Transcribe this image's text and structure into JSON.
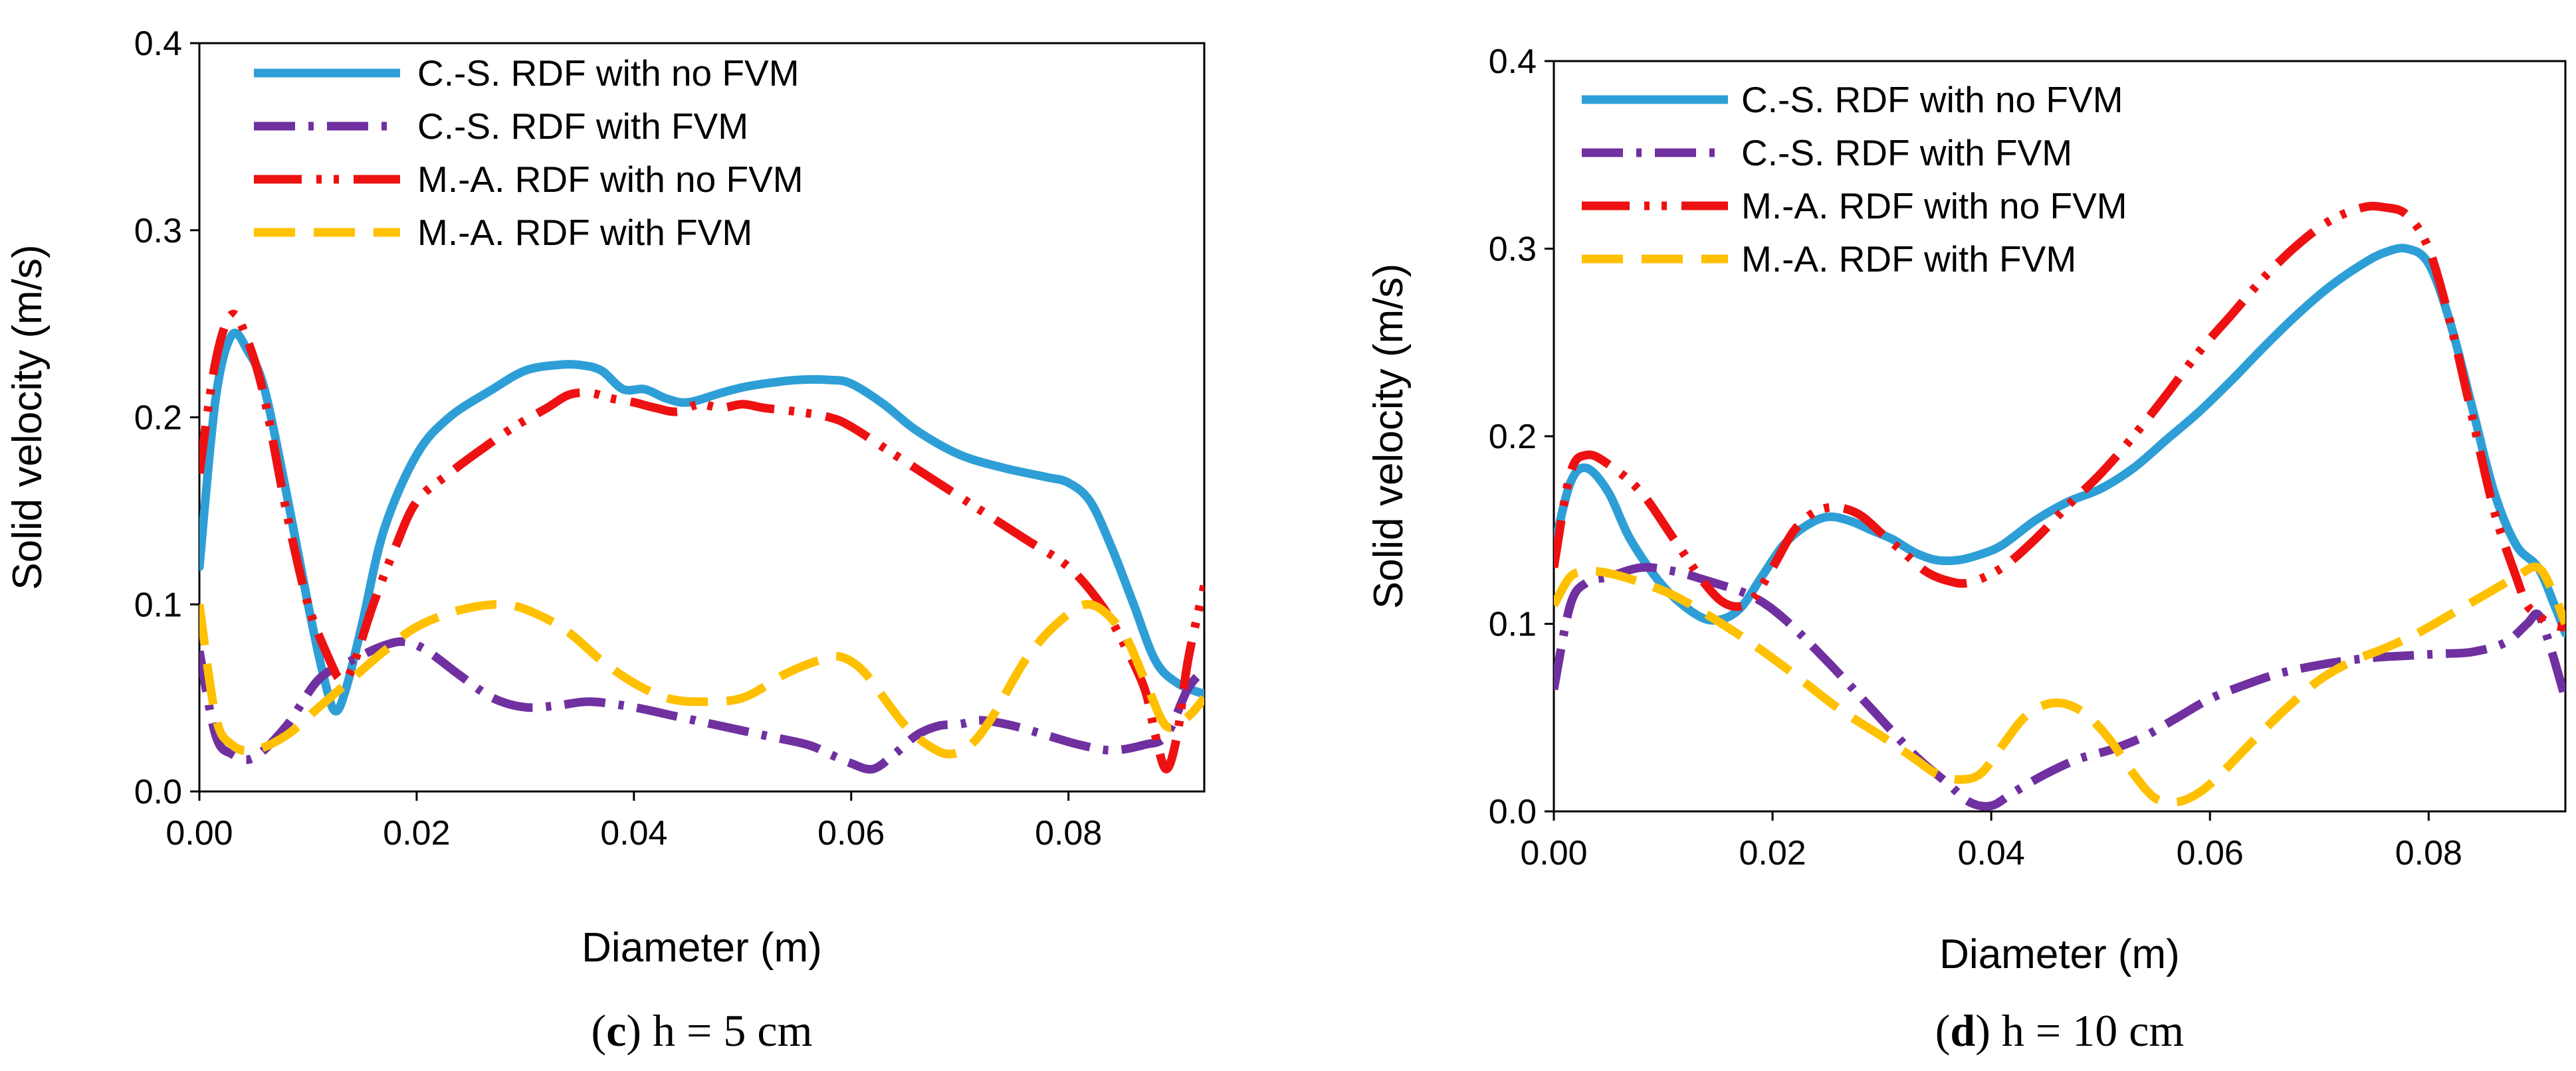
{
  "colors": {
    "cs_no_fvm": "#2E9FD6",
    "cs_fvm": "#7030A0",
    "ma_no_fvm": "#EE1111",
    "ma_fvm": "#FFC000"
  },
  "chart_data": [
    {
      "type": "line",
      "caption": {
        "letter": "c",
        "open": "(",
        "close": ")",
        "text": " h = 5 cm"
      },
      "xlabel": "Diameter (m)",
      "ylabel": "Solid velocity (m/s)",
      "xlim": [
        0,
        0.0925
      ],
      "ylim": [
        0,
        0.4
      ],
      "xticks": [
        0,
        0.02,
        0.04,
        0.06,
        0.08
      ],
      "xtick_labels": [
        "0.00",
        "0.02",
        "0.04",
        "0.06",
        "0.08"
      ],
      "yticks": [
        0,
        0.1,
        0.2,
        0.3,
        0.4
      ],
      "ytick_labels": [
        "0.0",
        "0.1",
        "0.2",
        "0.3",
        "0.4"
      ],
      "grid": false,
      "legend_position": "top-left",
      "series": [
        {
          "name": "C.-S. RDF with no FVM",
          "style": "solid",
          "color_key": "cs_no_fvm",
          "x": [
            0,
            0.0015,
            0.003,
            0.0045,
            0.006,
            0.008,
            0.01,
            0.0115,
            0.0125,
            0.0135,
            0.015,
            0.017,
            0.02,
            0.023,
            0.027,
            0.03,
            0.033,
            0.035,
            0.037,
            0.039,
            0.041,
            0.043,
            0.045,
            0.048,
            0.05,
            0.052,
            0.055,
            0.058,
            0.06,
            0.063,
            0.066,
            0.07,
            0.074,
            0.078,
            0.08,
            0.082,
            0.084,
            0.086,
            0.088,
            0.09,
            0.0925
          ],
          "y": [
            0.12,
            0.21,
            0.244,
            0.235,
            0.215,
            0.16,
            0.1,
            0.06,
            0.043,
            0.055,
            0.09,
            0.14,
            0.18,
            0.2,
            0.215,
            0.225,
            0.228,
            0.228,
            0.225,
            0.215,
            0.215,
            0.21,
            0.208,
            0.213,
            0.216,
            0.218,
            0.22,
            0.22,
            0.218,
            0.207,
            0.193,
            0.18,
            0.173,
            0.168,
            0.165,
            0.155,
            0.13,
            0.1,
            0.07,
            0.058,
            0.052
          ]
        },
        {
          "name": "C.-S. RDF with FVM",
          "style": "dashdot",
          "color_key": "cs_fvm",
          "x": [
            0,
            0.0015,
            0.003,
            0.005,
            0.008,
            0.011,
            0.014,
            0.017,
            0.019,
            0.021,
            0.024,
            0.027,
            0.03,
            0.033,
            0.036,
            0.04,
            0.044,
            0.048,
            0.052,
            0.056,
            0.058,
            0.06,
            0.062,
            0.064,
            0.066,
            0.068,
            0.07,
            0.072,
            0.075,
            0.078,
            0.081,
            0.084,
            0.087,
            0.089,
            0.091,
            0.0925
          ],
          "y": [
            0.075,
            0.03,
            0.02,
            0.018,
            0.035,
            0.06,
            0.07,
            0.078,
            0.08,
            0.075,
            0.062,
            0.05,
            0.045,
            0.046,
            0.048,
            0.045,
            0.04,
            0.035,
            0.03,
            0.025,
            0.02,
            0.015,
            0.012,
            0.02,
            0.03,
            0.035,
            0.036,
            0.038,
            0.035,
            0.03,
            0.025,
            0.022,
            0.025,
            0.03,
            0.055,
            0.065
          ]
        },
        {
          "name": "M.-A. RDF with no FVM",
          "style": "dashdotdot",
          "color_key": "ma_no_fvm",
          "x": [
            0,
            0.0015,
            0.003,
            0.0045,
            0.006,
            0.008,
            0.01,
            0.012,
            0.013,
            0.014,
            0.016,
            0.018,
            0.02,
            0.023,
            0.026,
            0.029,
            0.032,
            0.034,
            0.036,
            0.038,
            0.04,
            0.042,
            0.044,
            0.046,
            0.048,
            0.05,
            0.052,
            0.055,
            0.058,
            0.06,
            0.064,
            0.068,
            0.072,
            0.076,
            0.08,
            0.083,
            0.085,
            0.087,
            0.088,
            0.089,
            0.09,
            0.091,
            0.0925
          ],
          "y": [
            0.17,
            0.23,
            0.255,
            0.24,
            0.21,
            0.15,
            0.1,
            0.07,
            0.06,
            0.065,
            0.1,
            0.13,
            0.155,
            0.17,
            0.183,
            0.195,
            0.205,
            0.212,
            0.213,
            0.21,
            0.208,
            0.205,
            0.203,
            0.207,
            0.205,
            0.207,
            0.205,
            0.203,
            0.2,
            0.195,
            0.18,
            0.165,
            0.15,
            0.135,
            0.12,
            0.1,
            0.08,
            0.055,
            0.03,
            0.012,
            0.03,
            0.07,
            0.11
          ]
        },
        {
          "name": "M.-A. RDF with FVM",
          "style": "dashed",
          "color_key": "ma_fvm",
          "x": [
            0,
            0.0015,
            0.003,
            0.005,
            0.008,
            0.011,
            0.014,
            0.017,
            0.02,
            0.024,
            0.028,
            0.031,
            0.034,
            0.037,
            0.04,
            0.043,
            0.046,
            0.05,
            0.054,
            0.057,
            0.059,
            0.061,
            0.063,
            0.065,
            0.067,
            0.069,
            0.071,
            0.073,
            0.076,
            0.079,
            0.082,
            0.085,
            0.087,
            0.089,
            0.091,
            0.0925
          ],
          "y": [
            0.1,
            0.04,
            0.025,
            0.022,
            0.03,
            0.045,
            0.06,
            0.075,
            0.088,
            0.097,
            0.1,
            0.095,
            0.085,
            0.07,
            0.058,
            0.05,
            0.048,
            0.05,
            0.063,
            0.07,
            0.072,
            0.065,
            0.05,
            0.035,
            0.025,
            0.02,
            0.025,
            0.04,
            0.07,
            0.09,
            0.1,
            0.085,
            0.06,
            0.035,
            0.04,
            0.05
          ]
        }
      ]
    },
    {
      "type": "line",
      "caption": {
        "letter": "d",
        "open": "(",
        "close": ")",
        "text": " h = 10 cm"
      },
      "xlabel": "Diameter (m)",
      "ylabel": "Solid velocity (m/s)",
      "xlim": [
        0,
        0.0925
      ],
      "ylim": [
        0,
        0.4
      ],
      "xticks": [
        0,
        0.02,
        0.04,
        0.06,
        0.08
      ],
      "xtick_labels": [
        "0.00",
        "0.02",
        "0.04",
        "0.06",
        "0.08"
      ],
      "yticks": [
        0,
        0.1,
        0.2,
        0.3,
        0.4
      ],
      "ytick_labels": [
        "0.0",
        "0.1",
        "0.2",
        "0.3",
        "0.4"
      ],
      "grid": false,
      "legend_position": "top-left",
      "series": [
        {
          "name": "C.-S. RDF with no FVM",
          "style": "solid",
          "color_key": "cs_no_fvm",
          "x": [
            0,
            0.0015,
            0.003,
            0.005,
            0.007,
            0.01,
            0.013,
            0.015,
            0.017,
            0.019,
            0.021,
            0.023,
            0.025,
            0.027,
            0.029,
            0.031,
            0.033,
            0.035,
            0.037,
            0.039,
            0.041,
            0.044,
            0.047,
            0.05,
            0.053,
            0.056,
            0.059,
            0.062,
            0.065,
            0.068,
            0.071,
            0.074,
            0.076,
            0.078,
            0.08,
            0.082,
            0.084,
            0.086,
            0.088,
            0.09,
            0.0915,
            0.0925
          ],
          "y": [
            0.14,
            0.175,
            0.183,
            0.17,
            0.145,
            0.12,
            0.105,
            0.102,
            0.108,
            0.125,
            0.142,
            0.152,
            0.157,
            0.155,
            0.15,
            0.145,
            0.138,
            0.134,
            0.134,
            0.137,
            0.142,
            0.155,
            0.165,
            0.172,
            0.183,
            0.198,
            0.213,
            0.23,
            0.248,
            0.265,
            0.28,
            0.292,
            0.298,
            0.3,
            0.292,
            0.26,
            0.215,
            0.17,
            0.142,
            0.13,
            0.11,
            0.095
          ]
        },
        {
          "name": "C.-S. RDF with FVM",
          "style": "dashdot",
          "color_key": "cs_fvm",
          "x": [
            0,
            0.0015,
            0.003,
            0.005,
            0.008,
            0.011,
            0.014,
            0.018,
            0.021,
            0.025,
            0.029,
            0.033,
            0.036,
            0.038,
            0.04,
            0.042,
            0.045,
            0.048,
            0.051,
            0.054,
            0.057,
            0.06,
            0.063,
            0.066,
            0.069,
            0.072,
            0.075,
            0.078,
            0.081,
            0.084,
            0.087,
            0.089,
            0.09,
            0.091,
            0.0925
          ],
          "y": [
            0.065,
            0.11,
            0.122,
            0.125,
            0.13,
            0.128,
            0.123,
            0.115,
            0.103,
            0.08,
            0.055,
            0.03,
            0.015,
            0.005,
            0.003,
            0.01,
            0.02,
            0.028,
            0.033,
            0.04,
            0.05,
            0.06,
            0.067,
            0.073,
            0.077,
            0.08,
            0.082,
            0.083,
            0.084,
            0.085,
            0.09,
            0.1,
            0.105,
            0.09,
            0.06
          ]
        },
        {
          "name": "M.-A. RDF with no FVM",
          "style": "dashdotdot",
          "color_key": "ma_no_fvm",
          "x": [
            0,
            0.0015,
            0.003,
            0.005,
            0.008,
            0.011,
            0.014,
            0.016,
            0.018,
            0.02,
            0.022,
            0.024,
            0.026,
            0.028,
            0.03,
            0.032,
            0.034,
            0.036,
            0.038,
            0.041,
            0.044,
            0.047,
            0.05,
            0.053,
            0.056,
            0.059,
            0.062,
            0.065,
            0.068,
            0.071,
            0.074,
            0.076,
            0.078,
            0.08,
            0.082,
            0.084,
            0.086,
            0.088,
            0.089,
            0.09,
            0.091,
            0.0925
          ],
          "y": [
            0.13,
            0.18,
            0.19,
            0.185,
            0.17,
            0.145,
            0.12,
            0.11,
            0.112,
            0.13,
            0.15,
            0.16,
            0.162,
            0.158,
            0.148,
            0.138,
            0.128,
            0.123,
            0.122,
            0.13,
            0.145,
            0.163,
            0.18,
            0.2,
            0.222,
            0.245,
            0.265,
            0.285,
            0.302,
            0.315,
            0.322,
            0.322,
            0.318,
            0.3,
            0.26,
            0.21,
            0.16,
            0.125,
            0.11,
            0.105,
            0.1,
            0.098
          ]
        },
        {
          "name": "M.-A. RDF with FVM",
          "style": "dashed",
          "color_key": "ma_fvm",
          "x": [
            0,
            0.0015,
            0.003,
            0.005,
            0.008,
            0.011,
            0.014,
            0.018,
            0.022,
            0.026,
            0.03,
            0.033,
            0.035,
            0.037,
            0.039,
            0.041,
            0.043,
            0.045,
            0.047,
            0.049,
            0.051,
            0.053,
            0.055,
            0.057,
            0.059,
            0.061,
            0.064,
            0.067,
            0.07,
            0.073,
            0.076,
            0.079,
            0.082,
            0.085,
            0.088,
            0.09,
            0.0915,
            0.0925
          ],
          "y": [
            0.11,
            0.125,
            0.128,
            0.127,
            0.122,
            0.115,
            0.105,
            0.09,
            0.073,
            0.055,
            0.04,
            0.028,
            0.02,
            0.017,
            0.02,
            0.035,
            0.05,
            0.057,
            0.057,
            0.05,
            0.037,
            0.02,
            0.007,
            0.005,
            0.01,
            0.02,
            0.038,
            0.055,
            0.07,
            0.08,
            0.087,
            0.095,
            0.105,
            0.115,
            0.125,
            0.13,
            0.115,
            0.1
          ]
        }
      ]
    }
  ]
}
